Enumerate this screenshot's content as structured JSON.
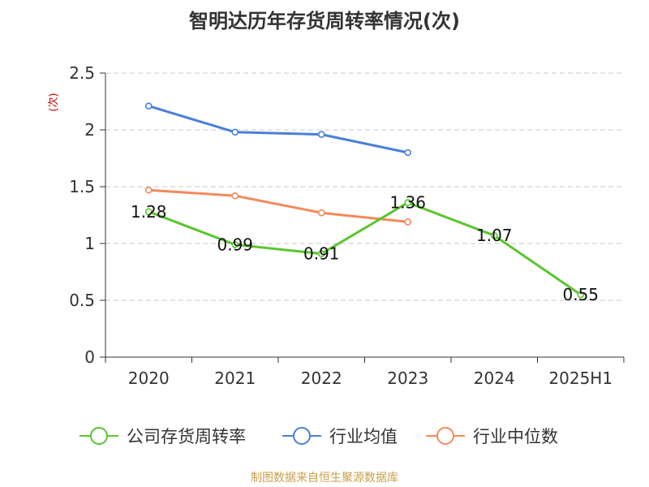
{
  "chart_data": {
    "type": "line",
    "title": "智明达历年存货周转率情况(次)",
    "ylabel": "(次)",
    "xlabel": "",
    "categories": [
      "2020",
      "2021",
      "2022",
      "2023",
      "2024",
      "2025H1"
    ],
    "ylim": [
      0,
      2.5
    ],
    "yticks": [
      "0",
      "0.5",
      "1",
      "1.5",
      "2",
      "2.5"
    ],
    "grid": true,
    "legend_position": "bottom",
    "series": [
      {
        "name": "公司存货周转率",
        "values": [
          1.28,
          0.99,
          0.91,
          1.36,
          1.07,
          0.55
        ],
        "labels": [
          "1.28",
          "0.99",
          "0.91",
          "1.36",
          "1.07",
          "0.55"
        ],
        "color": "#5cc530"
      },
      {
        "name": "行业均值",
        "values": [
          2.21,
          1.98,
          1.96,
          1.8,
          null,
          null
        ],
        "color": "#4a7fd8"
      },
      {
        "name": "行业中位数",
        "values": [
          1.47,
          1.42,
          1.27,
          1.19,
          null,
          null
        ],
        "color": "#f48a5a"
      }
    ]
  },
  "source_note": "制图数据来自恒生聚源数据库"
}
